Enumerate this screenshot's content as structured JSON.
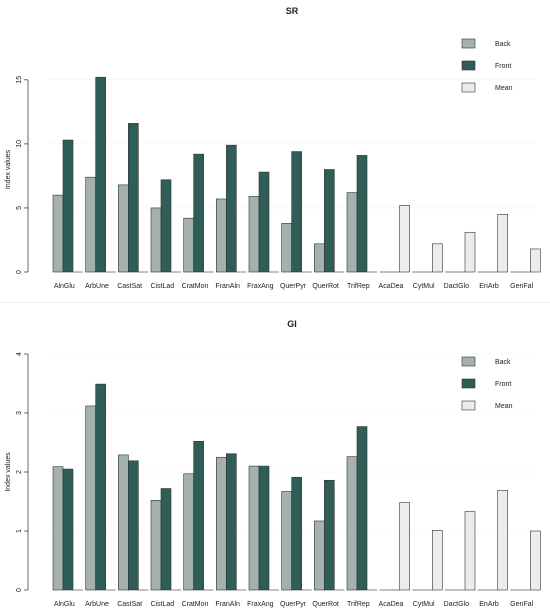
{
  "colors": {
    "back": "#a3b1b0",
    "front": "#2f5d57",
    "mean": "#ececec",
    "outline": "#333333",
    "grid": "#e3e3e3"
  },
  "chart_data": [
    {
      "type": "bar",
      "title": "SR",
      "xlabel": "",
      "ylabel": "Index values",
      "ylim": [
        0,
        16
      ],
      "yticks": [
        0,
        5,
        10,
        15
      ],
      "grid": true,
      "legend_position": "top-right",
      "categories": [
        "AlnGlu",
        "ArbUne",
        "CastSat",
        "CistLad",
        "CratMon",
        "FranAln",
        "FraxAng",
        "QuerPyr",
        "QuerRot",
        "TrifRep",
        "AcaDea",
        "CytMul",
        "DactGlo",
        "EriArb",
        "GenFal"
      ],
      "series": [
        {
          "name": "Back",
          "values": [
            6.0,
            7.4,
            6.8,
            5.0,
            4.2,
            5.7,
            5.9,
            3.8,
            2.2,
            6.2,
            0,
            0,
            0,
            0,
            0
          ]
        },
        {
          "name": "Front",
          "values": [
            10.3,
            15.2,
            11.6,
            7.2,
            9.2,
            9.9,
            7.8,
            9.4,
            8.0,
            9.1,
            0,
            0,
            0,
            0,
            0
          ]
        },
        {
          "name": "Mean",
          "values": [
            0,
            0,
            0,
            0,
            0,
            0,
            0,
            0,
            0,
            0,
            5.2,
            2.2,
            3.1,
            4.5,
            1.8
          ]
        }
      ]
    },
    {
      "type": "bar",
      "title": "GI",
      "xlabel": "",
      "ylabel": "Index values",
      "ylim": [
        0,
        4
      ],
      "yticks": [
        0,
        1,
        2,
        3,
        4
      ],
      "grid": true,
      "legend_position": "top-right",
      "categories": [
        "AlnGlu",
        "ArbUne",
        "CastSat",
        "CistLad",
        "CratMon",
        "FranAln",
        "FraxAng",
        "QuerPyr",
        "QuerRot",
        "TrifRep",
        "AcaDea",
        "CytMul",
        "DactGlo",
        "EnArb",
        "GenFal"
      ],
      "series": [
        {
          "name": "Back",
          "values": [
            2.09,
            3.12,
            2.29,
            1.52,
            1.97,
            2.25,
            2.1,
            1.67,
            1.17,
            2.26,
            0,
            0,
            0,
            0,
            0
          ]
        },
        {
          "name": "Front",
          "values": [
            2.05,
            3.49,
            2.19,
            1.72,
            2.52,
            2.31,
            2.1,
            1.91,
            1.86,
            2.77,
            0,
            0,
            0,
            0,
            0
          ]
        },
        {
          "name": "Mean",
          "values": [
            0,
            0,
            0,
            0,
            0,
            0,
            0,
            0,
            0,
            0,
            1.48,
            1.01,
            1.33,
            1.69,
            1.0
          ]
        }
      ]
    }
  ]
}
